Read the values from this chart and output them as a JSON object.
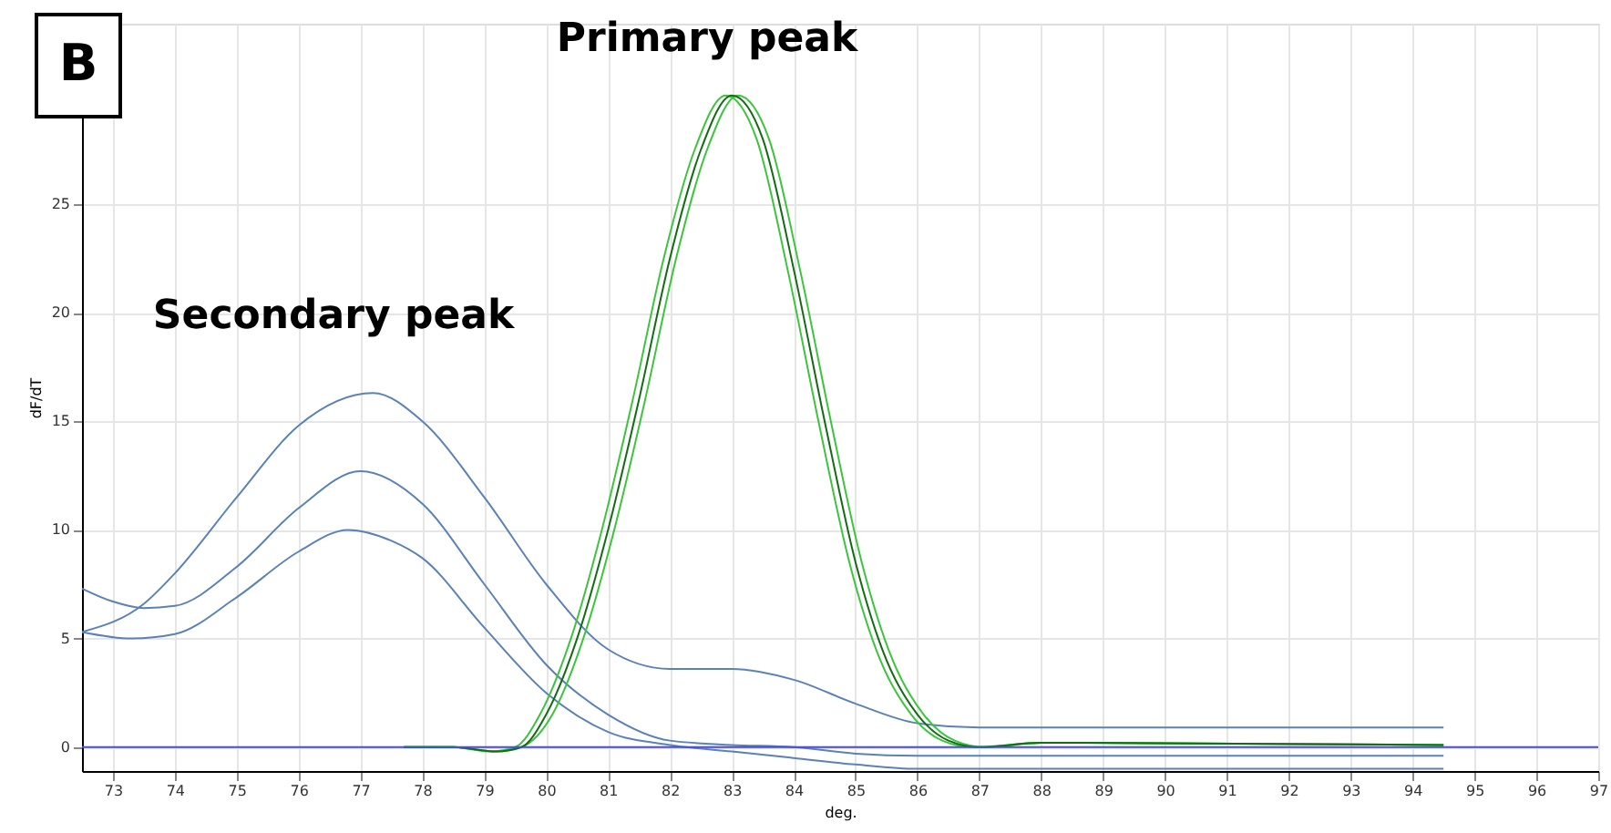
{
  "chart_data": {
    "type": "line",
    "xlabel": "deg.",
    "ylabel": "dF/dT",
    "xlim": [
      72.5,
      97
    ],
    "ylim": [
      -1.1,
      33.3
    ],
    "xticks": [
      73,
      74,
      75,
      76,
      77,
      78,
      79,
      80,
      81,
      82,
      83,
      84,
      85,
      86,
      87,
      88,
      89,
      90,
      91,
      92,
      93,
      94,
      95,
      96,
      97
    ],
    "yticks": [
      0,
      5,
      10,
      15,
      20,
      25
    ],
    "grid": true,
    "marker": "none",
    "line_style": "solid",
    "ref_lines": [
      {
        "axis": "y",
        "value": 0,
        "color": "#4a4ae6"
      }
    ],
    "annotations": [
      "B",
      "Primary peak",
      "Secondary peak"
    ],
    "series": [
      {
        "color": "#5a82b8",
        "x": [
          72.5,
          73.5,
          74,
          75,
          76,
          77.2,
          78,
          79,
          80,
          81,
          82,
          83,
          84,
          85,
          86,
          87,
          93.5,
          94.5
        ],
        "values": [
          5.3,
          6.6,
          8,
          11.5,
          14.8,
          16.3,
          15,
          11.5,
          7.5,
          4.5,
          3.6,
          3.6,
          3.1,
          2,
          1.1,
          0.9,
          0.9,
          0.9
        ]
      },
      {
        "color": "#5a82b8",
        "x": [
          72.5,
          73,
          73.5,
          74,
          75,
          76,
          77,
          78,
          79,
          80,
          81,
          82,
          83,
          84,
          85,
          86,
          94.5
        ],
        "values": [
          7.3,
          6.7,
          6.4,
          6.5,
          8.3,
          11,
          12.7,
          11.2,
          7.5,
          3.8,
          1.5,
          0.3,
          0.1,
          0,
          -0.3,
          -0.4,
          -0.4
        ]
      },
      {
        "color": "#5a82b8",
        "x": [
          72.5,
          73.3,
          74,
          75,
          76,
          76.8,
          77.5,
          78,
          79,
          80,
          81,
          82,
          83,
          84,
          85,
          86,
          94.5
        ],
        "values": [
          5.3,
          5,
          5.2,
          6.9,
          9,
          10,
          9.5,
          8.7,
          5.5,
          2.5,
          0.7,
          0.1,
          -0.2,
          -0.5,
          -0.8,
          -1,
          -1
        ]
      },
      {
        "color": "#3cc43c",
        "x": [
          77.7,
          78.5,
          79.1,
          79.5,
          79.9,
          80.4,
          80.9,
          81.4,
          81.9,
          82.4,
          82.9,
          83.4,
          83.9,
          84.4,
          84.9,
          85.4,
          85.9,
          86.4,
          86.9,
          88,
          94.5
        ],
        "values": [
          0,
          0,
          -0.2,
          0,
          1.5,
          5,
          10,
          16,
          22.5,
          27.5,
          30,
          28,
          22,
          15,
          8.5,
          4,
          1.5,
          0.3,
          0,
          0.2,
          0.1
        ]
      },
      {
        "color": "#3cc43c",
        "x": [
          77.7,
          78.5,
          79.2,
          79.6,
          80.1,
          80.6,
          81.1,
          81.6,
          82.1,
          82.6,
          83.1,
          83.6,
          84.1,
          84.6,
          85.1,
          85.6,
          86.1,
          86.6,
          87.1,
          88,
          94.5
        ],
        "values": [
          0,
          0,
          -0.2,
          0,
          1.5,
          5,
          10,
          16,
          22.5,
          27.5,
          30,
          28,
          22,
          15,
          8.5,
          4,
          1.5,
          0.3,
          0,
          0.2,
          0.1
        ]
      },
      {
        "color": "#136b13",
        "x": [
          77.7,
          78.5,
          79.2,
          79.6,
          80,
          80.5,
          81,
          81.5,
          82,
          82.5,
          83,
          83.5,
          84,
          84.5,
          85,
          85.5,
          86,
          86.5,
          87,
          88,
          94.5
        ],
        "values": [
          0,
          0,
          -0.2,
          0,
          1.5,
          5,
          10,
          16,
          22.5,
          27.5,
          30,
          28,
          22,
          15,
          8.5,
          4,
          1.5,
          0.3,
          0,
          0.2,
          0.1
        ]
      }
    ]
  }
}
